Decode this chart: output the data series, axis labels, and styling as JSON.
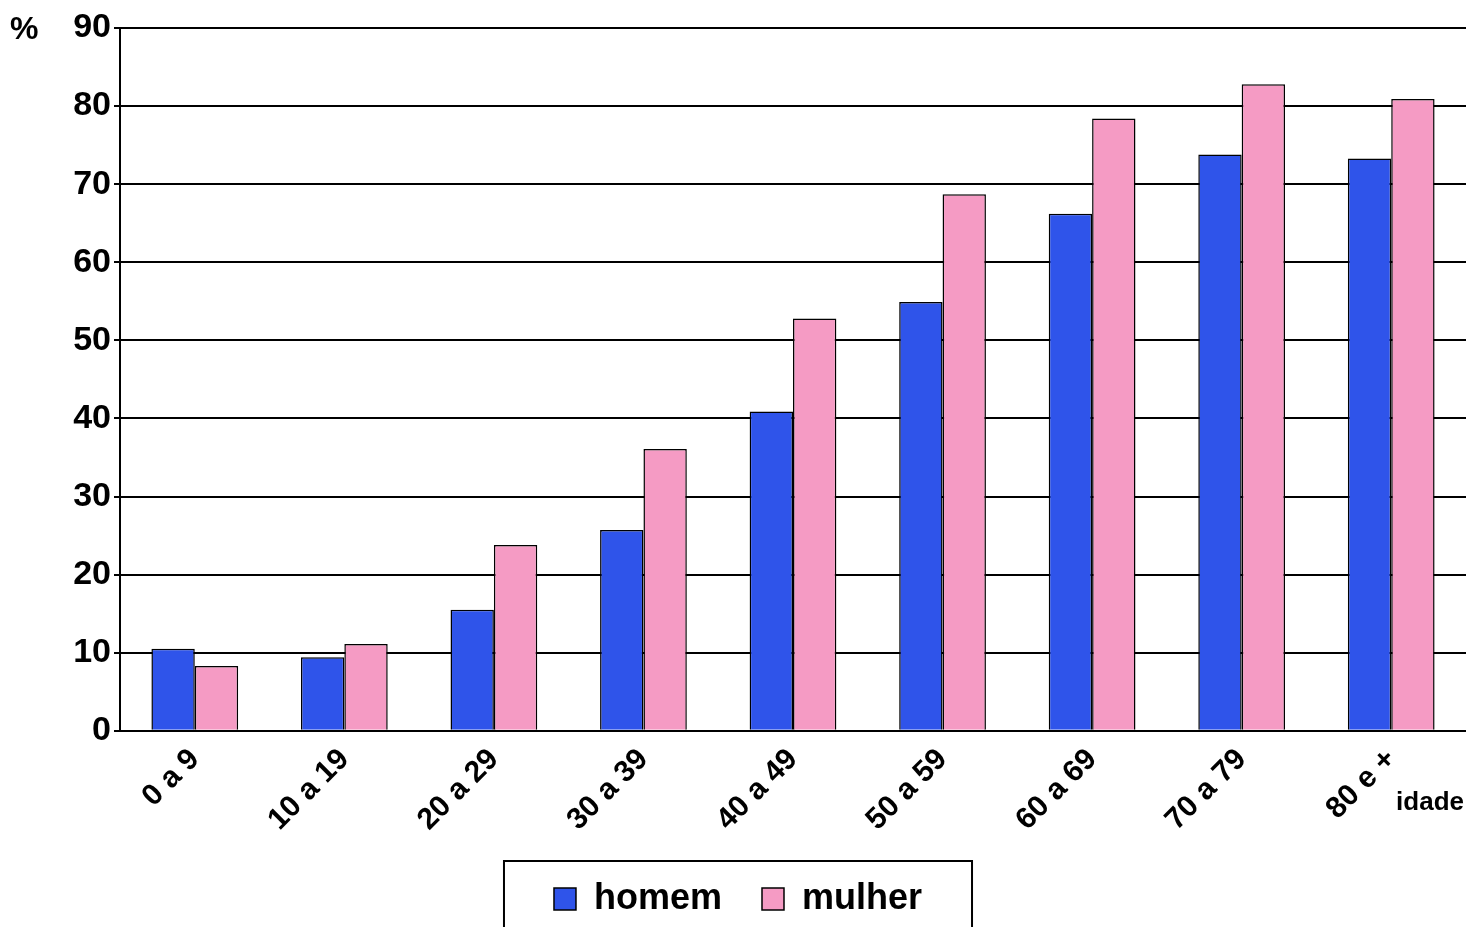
{
  "chart_data": {
    "type": "bar",
    "xlabel": "idade",
    "ylabel": "%",
    "categories": [
      "0 a 9",
      "10 a 19",
      "20 a 29",
      "30 a 39",
      "40 a 49",
      "50 a 59",
      "60 a 69",
      "70 a 79",
      "80 e +"
    ],
    "series": [
      {
        "name": "homem",
        "color": "#2f54ea",
        "values": [
          10.5,
          9.4,
          15.5,
          25.7,
          40.9,
          54.9,
          66.2,
          73.8,
          73.3
        ]
      },
      {
        "name": "mulher",
        "color": "#f59bc4",
        "values": [
          8.3,
          11.1,
          23.8,
          36.1,
          52.8,
          68.7,
          78.4,
          82.8,
          80.9
        ]
      }
    ],
    "ylim": [
      0,
      90
    ],
    "yticks": [
      0,
      10,
      20,
      30,
      40,
      50,
      60,
      70,
      80,
      90
    ],
    "grid": "y",
    "legend": "bottom"
  }
}
